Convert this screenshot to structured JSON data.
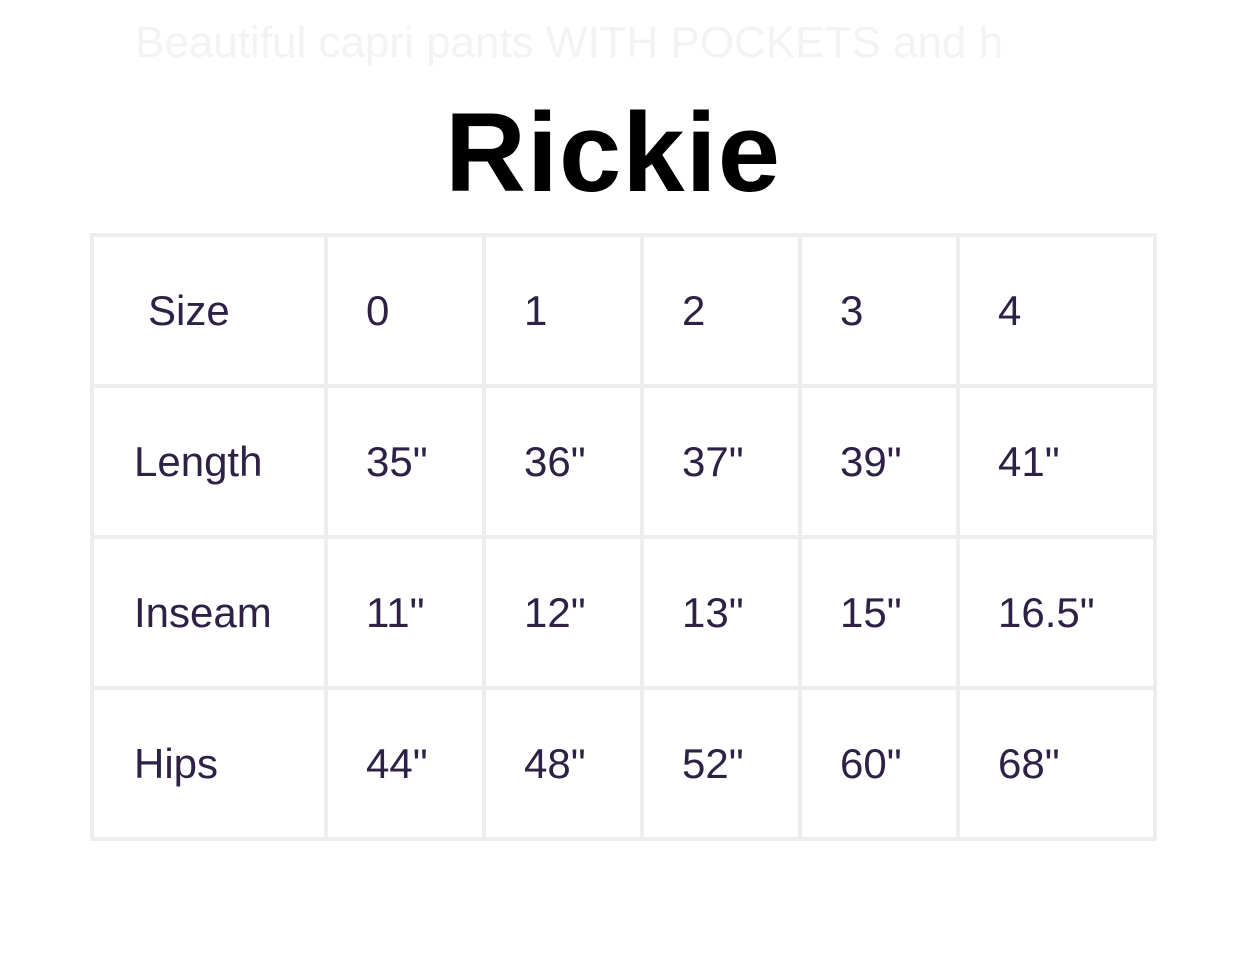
{
  "ghost_text": "Beautiful capri pants WITH POCKETS and h",
  "title": "Rickie",
  "table": {
    "rows": [
      {
        "label": "Size",
        "values": [
          "0",
          "1",
          "2",
          "3",
          "4"
        ]
      },
      {
        "label": "Length",
        "values": [
          "35\"",
          "36\"",
          "37\"",
          "39\"",
          "41\""
        ]
      },
      {
        "label": "Inseam",
        "values": [
          "11\"",
          "12\"",
          "13\"",
          "15\"",
          "16.5\""
        ]
      },
      {
        "label": "Hips",
        "values": [
          "44\"",
          "48\"",
          "52\"",
          "60\"",
          "68\""
        ]
      }
    ]
  }
}
